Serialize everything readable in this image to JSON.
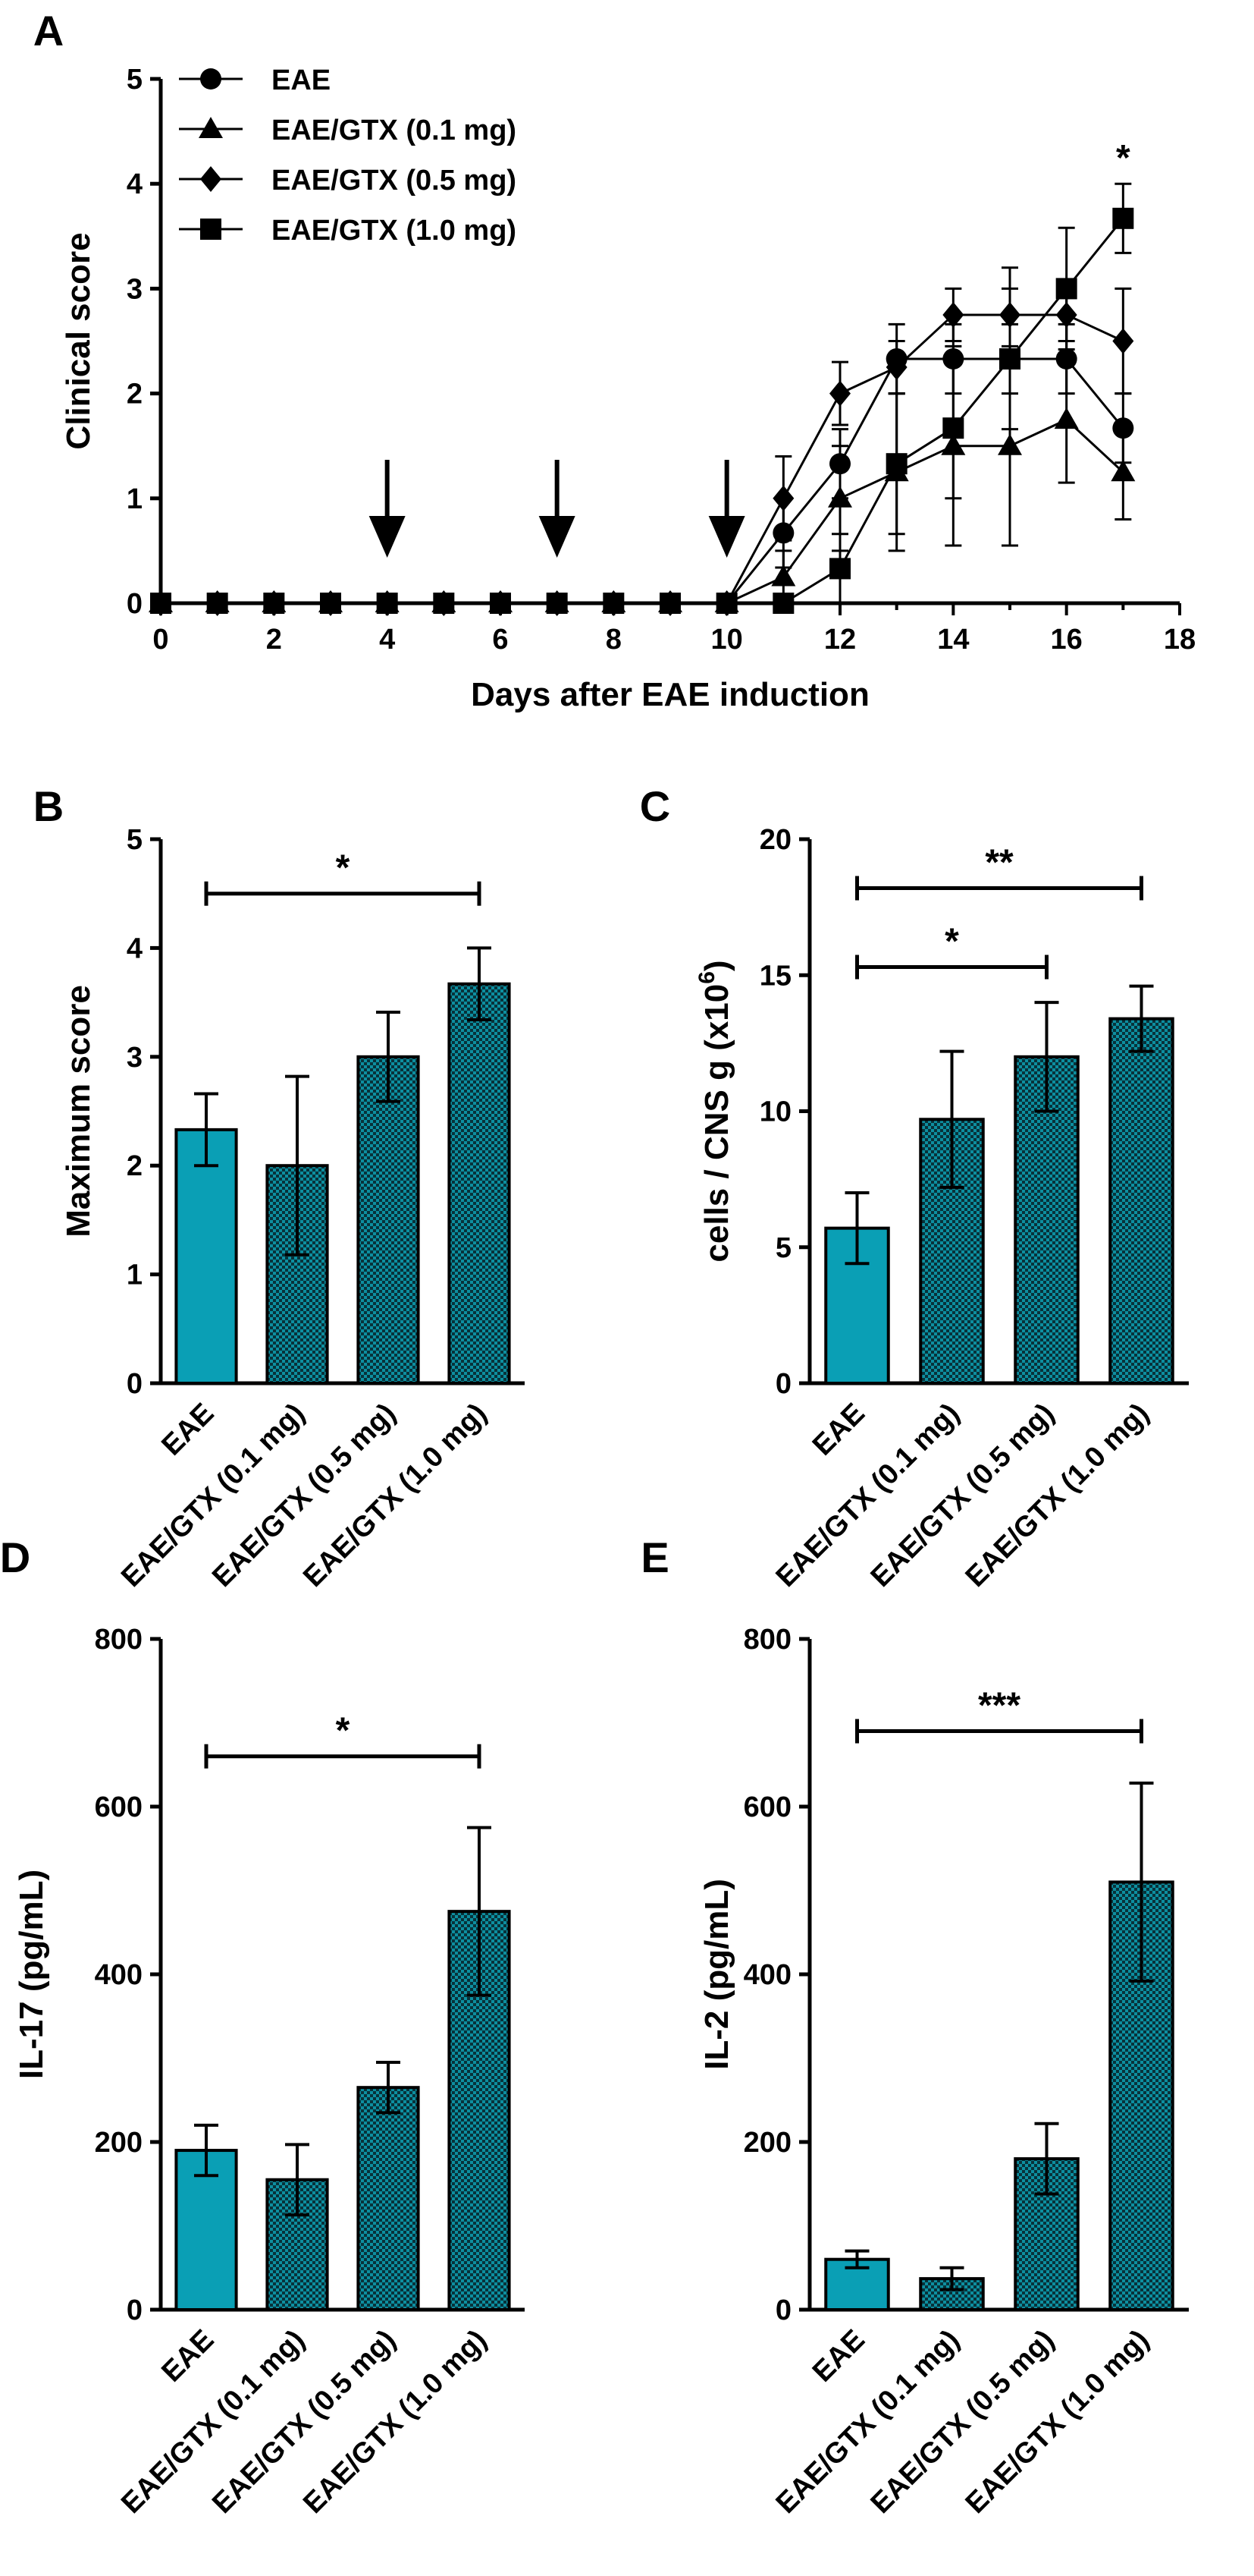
{
  "figure": {
    "panels": [
      "A",
      "B",
      "C",
      "D",
      "E"
    ]
  },
  "colors": {
    "eae_fill": "#0a9fb5",
    "gtx_fill": "#0d8fa0",
    "gtx_pattern": "#08323a",
    "line": "#000000"
  },
  "chart_data": [
    {
      "panel": "A",
      "type": "line",
      "xlabel": "Days after EAE induction",
      "ylabel": "Clinical score",
      "xlim": [
        0,
        18
      ],
      "ylim": [
        0,
        5
      ],
      "xticks": [
        "0",
        "2",
        "4",
        "6",
        "8",
        "10",
        "12",
        "14",
        "16",
        "18"
      ],
      "yticks": [
        "0",
        "1",
        "2",
        "3",
        "4",
        "5"
      ],
      "legend": [
        "EAE",
        "EAE/GTX (0.1 mg)",
        "EAE/GTX (0.5 mg)",
        "EAE/GTX (1.0 mg)"
      ],
      "arrows_at_days": [
        4,
        7,
        10
      ],
      "annotations": [
        {
          "text": "*",
          "x": 17,
          "y": 4.35
        }
      ],
      "series": [
        {
          "name": "EAE",
          "marker": "circle",
          "x": [
            0,
            1,
            2,
            3,
            4,
            5,
            6,
            7,
            8,
            9,
            10,
            11,
            12,
            13,
            14,
            15,
            16,
            17
          ],
          "y": [
            0,
            0,
            0,
            0,
            0,
            0,
            0,
            0,
            0,
            0,
            0,
            0.67,
            1.33,
            2.33,
            2.33,
            2.33,
            2.33,
            1.67
          ],
          "err": [
            0,
            0,
            0,
            0,
            0,
            0,
            0,
            0,
            0,
            0,
            0,
            0.33,
            0.33,
            0.33,
            0.33,
            0.33,
            0.33,
            0.33
          ]
        },
        {
          "name": "EAE/GTX (0.1 mg)",
          "marker": "triangle",
          "x": [
            0,
            1,
            2,
            3,
            4,
            5,
            6,
            7,
            8,
            9,
            10,
            11,
            12,
            13,
            14,
            15,
            16,
            17
          ],
          "y": [
            0,
            0,
            0,
            0,
            0,
            0,
            0,
            0,
            0,
            0,
            0,
            0.25,
            1.0,
            1.25,
            1.5,
            1.5,
            1.75,
            1.25
          ],
          "err": [
            0,
            0,
            0,
            0,
            0,
            0,
            0,
            0,
            0,
            0,
            0,
            0.25,
            0.5,
            0.75,
            0.95,
            0.95,
            0.6,
            0.45
          ]
        },
        {
          "name": "EAE/GTX (0.5 mg)",
          "marker": "diamond",
          "x": [
            0,
            1,
            2,
            3,
            4,
            5,
            6,
            7,
            8,
            9,
            10,
            11,
            12,
            13,
            14,
            15,
            16,
            17
          ],
          "y": [
            0,
            0,
            0,
            0,
            0,
            0,
            0,
            0,
            0,
            0,
            0,
            1.0,
            2.0,
            2.25,
            2.75,
            2.75,
            2.75,
            2.5
          ],
          "err": [
            0,
            0,
            0,
            0,
            0,
            0,
            0,
            0,
            0,
            0,
            0,
            0.4,
            0.3,
            0.25,
            0.25,
            0.45,
            0.25,
            0.5
          ]
        },
        {
          "name": "EAE/GTX (1.0 mg)",
          "marker": "square",
          "x": [
            0,
            1,
            2,
            3,
            4,
            5,
            6,
            7,
            8,
            9,
            10,
            11,
            12,
            13,
            14,
            15,
            16,
            17
          ],
          "y": [
            0,
            0,
            0,
            0,
            0,
            0,
            0,
            0,
            0,
            0,
            0,
            0,
            0.33,
            1.33,
            1.67,
            2.33,
            3.0,
            3.67
          ],
          "err": [
            0,
            0,
            0,
            0,
            0,
            0,
            0,
            0,
            0,
            0,
            0,
            0,
            0.33,
            0.67,
            0.67,
            0.67,
            0.58,
            0.33
          ]
        }
      ]
    },
    {
      "panel": "B",
      "type": "bar",
      "ylabel": "Maximum score",
      "ylim": [
        0,
        5
      ],
      "yticks": [
        "0",
        "1",
        "2",
        "3",
        "4",
        "5"
      ],
      "categories": [
        "EAE",
        "EAE/GTX (0.1 mg)",
        "EAE/GTX (0.5 mg)",
        "EAE/GTX (1.0 mg)"
      ],
      "values": [
        2.33,
        2.0,
        3.0,
        3.67
      ],
      "err": [
        0.33,
        0.82,
        0.41,
        0.33
      ],
      "significance": [
        {
          "from": 0,
          "to": 3,
          "y": 4.5,
          "label": "*"
        }
      ]
    },
    {
      "panel": "C",
      "type": "bar",
      "ylabel": "cells / CNS g (x10",
      "ylabel_sup": "6",
      "ylabel_close": ")",
      "ylim": [
        0,
        20
      ],
      "yticks": [
        "0",
        "5",
        "10",
        "15",
        "20"
      ],
      "categories": [
        "EAE",
        "EAE/GTX (0.1 mg)",
        "EAE/GTX (0.5 mg)",
        "EAE/GTX (1.0 mg)"
      ],
      "values": [
        5.7,
        9.7,
        12.0,
        13.4
      ],
      "err": [
        1.3,
        2.5,
        2.0,
        1.2
      ],
      "significance": [
        {
          "from": 0,
          "to": 2,
          "y": 15.3,
          "label": "*"
        },
        {
          "from": 0,
          "to": 3,
          "y": 18.2,
          "label": "**"
        }
      ]
    },
    {
      "panel": "D",
      "type": "bar",
      "ylabel": "IL-17 (pg/mL)",
      "ylim": [
        0,
        800
      ],
      "yticks": [
        "0",
        "200",
        "400",
        "600",
        "800"
      ],
      "categories": [
        "EAE",
        "EAE/GTX (0.1 mg)",
        "EAE/GTX (0.5 mg)",
        "EAE/GTX (1.0 mg)"
      ],
      "values": [
        190,
        155,
        265,
        475
      ],
      "err": [
        30,
        42,
        30,
        100
      ],
      "significance": [
        {
          "from": 0,
          "to": 3,
          "y": 660,
          "label": "*"
        }
      ]
    },
    {
      "panel": "E",
      "type": "bar",
      "ylabel": "IL-2 (pg/mL)",
      "ylim": [
        0,
        800
      ],
      "yticks": [
        "0",
        "200",
        "400",
        "600",
        "800"
      ],
      "categories": [
        "EAE",
        "EAE/GTX (0.1 mg)",
        "EAE/GTX (0.5 mg)",
        "EAE/GTX (1.0 mg)"
      ],
      "values": [
        60,
        37,
        180,
        510
      ],
      "err": [
        10,
        13,
        42,
        118
      ],
      "significance": [
        {
          "from": 0,
          "to": 3,
          "y": 690,
          "label": "***"
        }
      ]
    }
  ]
}
